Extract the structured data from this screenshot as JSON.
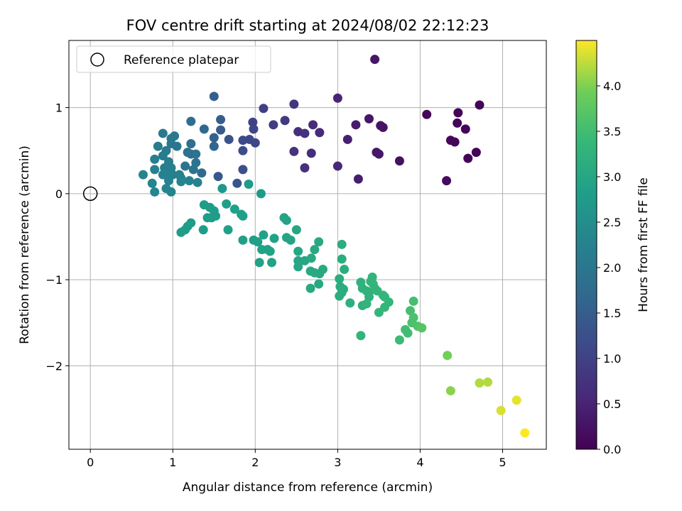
{
  "chart_data": {
    "type": "scatter",
    "title": "FOV centre drift starting at 2024/08/02 22:12:23",
    "xlabel": "Angular distance from reference (arcmin)",
    "ylabel": "Rotation from reference (arcmin)",
    "xlim": [
      -0.26,
      5.53
    ],
    "ylim": [
      -2.97,
      1.78
    ],
    "xticks": [
      0,
      1,
      2,
      3,
      4,
      5
    ],
    "yticks": [
      -2,
      -1,
      0,
      1
    ],
    "grid": true,
    "legend": {
      "location": "upper-left",
      "entries": [
        {
          "label": "Reference platepar",
          "marker": "open-circle"
        }
      ]
    },
    "reference": {
      "x": 0,
      "y": 0
    },
    "colorbar": {
      "label": "Hours from first FF file",
      "colormap": "viridis",
      "range": [
        0.0,
        4.5
      ],
      "ticks": [
        0.0,
        0.5,
        1.0,
        1.5,
        2.0,
        2.5,
        3.0,
        3.5,
        4.0
      ]
    },
    "series": [
      {
        "points": [
          [
            3.45,
            1.56,
            0.3
          ],
          [
            4.72,
            1.03,
            0.05
          ],
          [
            4.08,
            0.92,
            0.08
          ],
          [
            4.46,
            0.94,
            0.05
          ],
          [
            4.45,
            0.82,
            0.06
          ],
          [
            4.55,
            0.75,
            0.07
          ],
          [
            4.37,
            0.62,
            0.1
          ],
          [
            4.42,
            0.6,
            0.08
          ],
          [
            4.68,
            0.48,
            0.05
          ],
          [
            4.58,
            0.41,
            0.06
          ],
          [
            4.32,
            0.15,
            0.15
          ],
          [
            3.75,
            0.38,
            0.22
          ],
          [
            3.52,
            0.79,
            0.28
          ],
          [
            3.55,
            0.77,
            0.27
          ],
          [
            3.38,
            0.87,
            0.3
          ],
          [
            3.47,
            0.48,
            0.32
          ],
          [
            3.5,
            0.46,
            0.3
          ],
          [
            3.22,
            0.8,
            0.4
          ],
          [
            3.12,
            0.63,
            0.45
          ],
          [
            3.25,
            0.17,
            0.42
          ],
          [
            3.0,
            1.11,
            0.5
          ],
          [
            3.0,
            0.32,
            0.55
          ],
          [
            2.78,
            0.71,
            0.6
          ],
          [
            2.7,
            0.8,
            0.62
          ],
          [
            2.68,
            0.47,
            0.65
          ],
          [
            2.52,
            0.72,
            0.7
          ],
          [
            2.6,
            0.7,
            0.72
          ],
          [
            2.47,
            0.49,
            0.75
          ],
          [
            2.6,
            0.3,
            0.72
          ],
          [
            2.47,
            1.04,
            0.8
          ],
          [
            2.36,
            0.85,
            0.85
          ],
          [
            2.22,
            0.8,
            0.9
          ],
          [
            2.1,
            0.99,
            0.95
          ],
          [
            1.97,
            0.83,
            1.0
          ],
          [
            1.98,
            0.75,
            1.05
          ],
          [
            1.93,
            0.63,
            1.1
          ],
          [
            1.85,
            0.62,
            1.15
          ],
          [
            2.0,
            0.59,
            1.1
          ],
          [
            1.85,
            0.5,
            1.2
          ],
          [
            1.85,
            0.28,
            1.25
          ],
          [
            1.78,
            0.12,
            1.3
          ],
          [
            1.68,
            0.63,
            1.3
          ],
          [
            1.55,
            0.2,
            1.4
          ],
          [
            1.58,
            0.74,
            1.45
          ],
          [
            1.58,
            0.86,
            1.5
          ],
          [
            1.5,
            1.13,
            1.55
          ],
          [
            1.5,
            0.65,
            1.6
          ],
          [
            1.5,
            0.55,
            1.65
          ],
          [
            1.38,
            0.75,
            1.7
          ],
          [
            1.22,
            0.84,
            1.8
          ],
          [
            1.35,
            0.24,
            1.75
          ],
          [
            1.22,
            0.58,
            1.85
          ],
          [
            1.22,
            0.46,
            1.85
          ],
          [
            1.18,
            0.48,
            1.9
          ],
          [
            1.28,
            0.46,
            1.9
          ],
          [
            1.28,
            0.36,
            1.95
          ],
          [
            1.15,
            0.32,
            1.95
          ],
          [
            1.25,
            0.28,
            1.95
          ],
          [
            1.05,
            0.55,
            2.0
          ],
          [
            0.98,
            0.58,
            2.0
          ],
          [
            0.98,
            0.64,
            2.05
          ],
          [
            1.02,
            0.67,
            2.05
          ],
          [
            0.88,
            0.7,
            2.05
          ],
          [
            0.82,
            0.55,
            2.1
          ],
          [
            0.92,
            0.5,
            2.1
          ],
          [
            0.88,
            0.44,
            2.1
          ],
          [
            0.78,
            0.4,
            2.15
          ],
          [
            0.95,
            0.37,
            2.15
          ],
          [
            0.9,
            0.3,
            2.15
          ],
          [
            0.98,
            0.3,
            2.15
          ],
          [
            0.78,
            0.28,
            2.2
          ],
          [
            0.92,
            0.24,
            2.2
          ],
          [
            1.0,
            0.22,
            2.2
          ],
          [
            1.08,
            0.22,
            2.2
          ],
          [
            1.1,
            0.18,
            2.25
          ],
          [
            0.95,
            0.15,
            2.25
          ],
          [
            0.88,
            0.22,
            2.25
          ],
          [
            1.2,
            0.15,
            2.25
          ],
          [
            1.3,
            0.13,
            2.25
          ],
          [
            0.64,
            0.22,
            2.3
          ],
          [
            0.75,
            0.12,
            2.3
          ],
          [
            0.78,
            0.02,
            2.3
          ],
          [
            0.92,
            0.06,
            2.3
          ],
          [
            0.98,
            0.02,
            2.3
          ],
          [
            1.1,
            0.14,
            2.3
          ],
          [
            1.6,
            0.06,
            2.7
          ],
          [
            1.92,
            0.11,
            2.75
          ],
          [
            2.07,
            -0.0,
            2.75
          ],
          [
            1.38,
            -0.13,
            2.8
          ],
          [
            1.45,
            -0.16,
            2.8
          ],
          [
            1.5,
            -0.2,
            2.8
          ],
          [
            1.52,
            -0.26,
            2.8
          ],
          [
            1.42,
            -0.28,
            2.8
          ],
          [
            1.47,
            -0.28,
            2.8
          ],
          [
            1.65,
            -0.12,
            2.85
          ],
          [
            1.75,
            -0.18,
            2.85
          ],
          [
            1.83,
            -0.24,
            2.85
          ],
          [
            1.85,
            -0.26,
            2.85
          ],
          [
            1.22,
            -0.34,
            2.8
          ],
          [
            1.18,
            -0.38,
            2.8
          ],
          [
            1.15,
            -0.42,
            2.8
          ],
          [
            1.1,
            -0.45,
            2.8
          ],
          [
            1.37,
            -0.42,
            2.8
          ],
          [
            1.67,
            -0.42,
            2.85
          ],
          [
            1.85,
            -0.54,
            2.85
          ],
          [
            1.98,
            -0.54,
            2.85
          ],
          [
            2.03,
            -0.56,
            2.85
          ],
          [
            2.1,
            -0.48,
            2.9
          ],
          [
            2.23,
            -0.52,
            2.9
          ],
          [
            2.35,
            -0.28,
            2.95
          ],
          [
            2.38,
            -0.31,
            2.95
          ],
          [
            2.38,
            -0.51,
            2.95
          ],
          [
            2.43,
            -0.54,
            2.95
          ],
          [
            2.5,
            -0.42,
            3.0
          ],
          [
            2.08,
            -0.65,
            2.9
          ],
          [
            2.15,
            -0.65,
            2.9
          ],
          [
            2.18,
            -0.67,
            2.9
          ],
          [
            2.05,
            -0.8,
            2.9
          ],
          [
            2.2,
            -0.8,
            2.9
          ],
          [
            2.52,
            -0.67,
            3.0
          ],
          [
            2.52,
            -0.78,
            3.0
          ],
          [
            2.6,
            -0.78,
            3.0
          ],
          [
            2.52,
            -0.85,
            3.0
          ],
          [
            2.68,
            -0.75,
            3.05
          ],
          [
            2.72,
            -0.65,
            3.05
          ],
          [
            2.77,
            -0.56,
            3.05
          ],
          [
            2.67,
            -0.9,
            3.05
          ],
          [
            2.72,
            -0.92,
            3.05
          ],
          [
            2.78,
            -0.93,
            3.05
          ],
          [
            2.82,
            -0.88,
            3.05
          ],
          [
            2.77,
            -1.05,
            3.05
          ],
          [
            2.67,
            -1.1,
            3.05
          ],
          [
            3.05,
            -0.59,
            3.15
          ],
          [
            3.05,
            -0.76,
            3.15
          ],
          [
            3.08,
            -0.88,
            3.15
          ],
          [
            3.02,
            -0.99,
            3.15
          ],
          [
            3.03,
            -1.08,
            3.15
          ],
          [
            3.07,
            -1.11,
            3.15
          ],
          [
            3.05,
            -1.15,
            3.15
          ],
          [
            3.02,
            -1.19,
            3.15
          ],
          [
            3.15,
            -1.27,
            3.2
          ],
          [
            3.28,
            -1.03,
            3.25
          ],
          [
            3.3,
            -1.1,
            3.25
          ],
          [
            3.3,
            -1.3,
            3.25
          ],
          [
            3.35,
            -1.13,
            3.25
          ],
          [
            3.38,
            -1.15,
            3.25
          ],
          [
            3.38,
            -1.2,
            3.25
          ],
          [
            3.42,
            -0.97,
            3.3
          ],
          [
            3.4,
            -1.02,
            3.3
          ],
          [
            3.43,
            -1.05,
            3.3
          ],
          [
            3.45,
            -1.1,
            3.3
          ],
          [
            3.48,
            -1.13,
            3.3
          ],
          [
            3.35,
            -1.28,
            3.3
          ],
          [
            3.28,
            -1.65,
            3.3
          ],
          [
            3.5,
            -1.38,
            3.35
          ],
          [
            3.55,
            -1.18,
            3.35
          ],
          [
            3.57,
            -1.2,
            3.35
          ],
          [
            3.57,
            -1.32,
            3.35
          ],
          [
            3.62,
            -1.26,
            3.35
          ],
          [
            3.75,
            -1.7,
            3.45
          ],
          [
            3.82,
            -1.58,
            3.5
          ],
          [
            3.85,
            -1.62,
            3.5
          ],
          [
            3.88,
            -1.36,
            3.55
          ],
          [
            3.92,
            -1.25,
            3.55
          ],
          [
            3.92,
            -1.44,
            3.6
          ],
          [
            3.9,
            -1.5,
            3.6
          ],
          [
            3.97,
            -1.54,
            3.65
          ],
          [
            4.02,
            -1.56,
            3.7
          ],
          [
            4.33,
            -1.88,
            3.95
          ],
          [
            4.37,
            -2.29,
            4.05
          ],
          [
            4.72,
            -2.2,
            4.2
          ],
          [
            4.82,
            -2.19,
            4.2
          ],
          [
            4.98,
            -2.52,
            4.35
          ],
          [
            5.17,
            -2.4,
            4.4
          ],
          [
            5.27,
            -2.78,
            4.5
          ]
        ]
      }
    ]
  }
}
